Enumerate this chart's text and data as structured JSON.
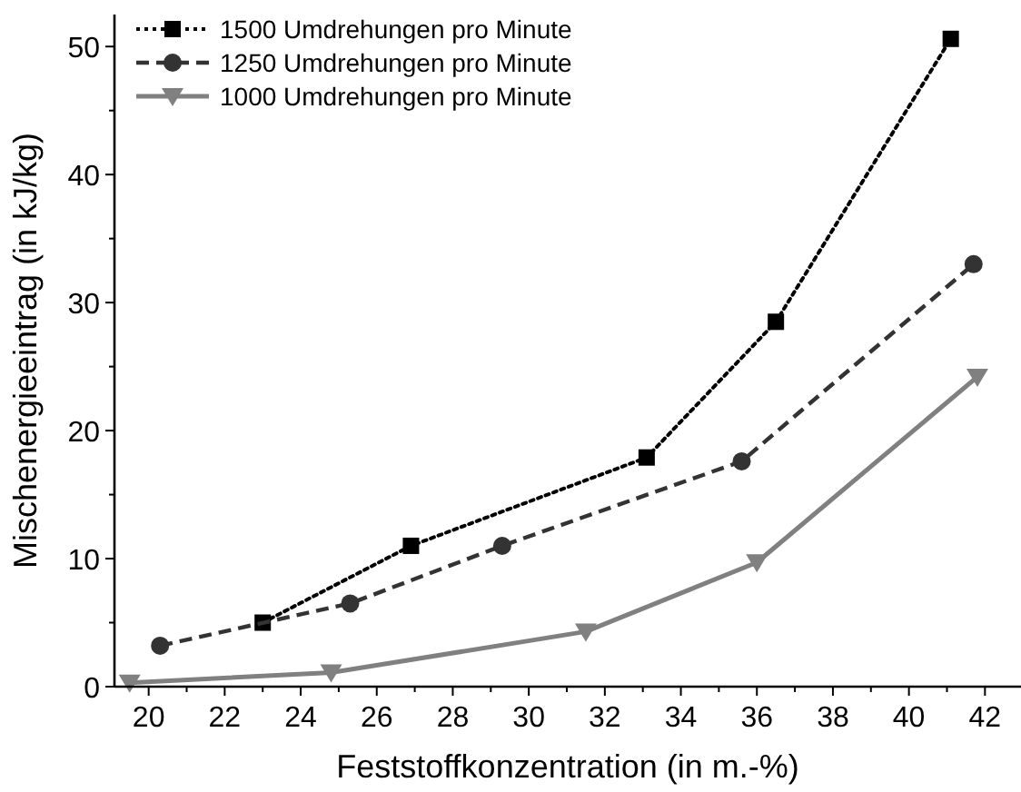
{
  "chart_data": {
    "type": "line",
    "xlabel": "Feststoffkonzentration (in m.-%)",
    "ylabel": "Mischenergieeintrag (in kJ/kg)",
    "xlim": [
      19.1,
      42.9
    ],
    "ylim": [
      0,
      52.5
    ],
    "xticks": [
      20,
      {
        "value": 21,
        "label": null
      },
      22,
      {
        "value": 23,
        "label": null
      },
      24,
      {
        "value": 25,
        "label": null
      },
      26,
      {
        "value": 27,
        "label": null
      },
      28,
      {
        "value": 29,
        "label": null
      },
      30,
      {
        "value": 31,
        "label": null
      },
      32,
      {
        "value": 33,
        "label": null
      },
      34,
      {
        "value": 35,
        "label": null
      },
      36,
      {
        "value": 37,
        "label": null
      },
      38,
      {
        "value": 39,
        "label": null
      },
      40,
      {
        "value": 41,
        "label": null
      },
      42
    ],
    "yticks": [
      0,
      {
        "value": 5,
        "label": null
      },
      10,
      {
        "value": 15,
        "label": null
      },
      20,
      {
        "value": 25,
        "label": null
      },
      30,
      {
        "value": 35,
        "label": null
      },
      40,
      {
        "value": 45,
        "label": null
      },
      50
    ],
    "grid": false,
    "legend": "top left",
    "series": [
      {
        "name": "1500 Umdrehungen pro Minute",
        "color": "#000000",
        "marker": "square",
        "line_style": "dotted",
        "x": [
          23.0,
          26.9,
          33.1,
          36.5,
          41.1
        ],
        "values": [
          5,
          11,
          17.9,
          28.5,
          50.6
        ]
      },
      {
        "name": "1250 Umdrehungen pro Minute",
        "color": "#333333",
        "marker": "circle",
        "line_style": "dashed",
        "x": [
          20.3,
          25.3,
          29.3,
          35.6,
          41.7
        ],
        "values": [
          3.2,
          6.5,
          11,
          17.6,
          33
        ]
      },
      {
        "name": "1000 Umdrehungen pro Minute",
        "color": "#808080",
        "marker": "triangle",
        "line_style": "solid",
        "x": [
          19.5,
          24.8,
          31.5,
          36.0,
          41.8
        ],
        "values": [
          0.3,
          1.1,
          4.3,
          9.7,
          24.2
        ]
      }
    ]
  }
}
